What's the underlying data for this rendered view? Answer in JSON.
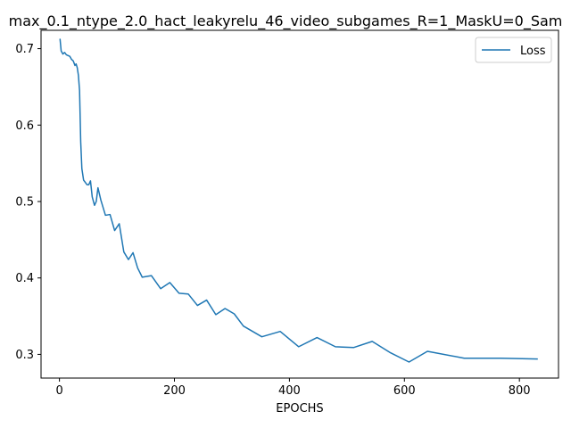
{
  "chart_data": {
    "type": "line",
    "title": "max_0.1_ntype_2.0_hact_leakyrelu_46_video_subgames_R=1_MaskU=0_Sam",
    "xlabel": "EPOCHS",
    "ylabel": "",
    "xlim": [
      -32,
      868
    ],
    "ylim": [
      0.269,
      0.724
    ],
    "xticks": [
      0,
      200,
      400,
      600,
      800
    ],
    "yticks": [
      0.3,
      0.4,
      0.5,
      0.6,
      0.7
    ],
    "grid": false,
    "legend_position": "top-right",
    "line_color": "#1f77b4",
    "series": [
      {
        "name": "Loss",
        "x": [
          1,
          3,
          6,
          9,
          12,
          15,
          18,
          21,
          24,
          27,
          29,
          31,
          33,
          35,
          37,
          39,
          42,
          45,
          48,
          51,
          54,
          57,
          61,
          64,
          67,
          72,
          80,
          88,
          96,
          104,
          112,
          120,
          128,
          136,
          144,
          160,
          176,
          192,
          208,
          224,
          240,
          256,
          272,
          288,
          304,
          320,
          352,
          384,
          416,
          448,
          480,
          512,
          544,
          576,
          608,
          640,
          704,
          768,
          832
        ],
        "y": [
          0.713,
          0.697,
          0.693,
          0.695,
          0.692,
          0.691,
          0.69,
          0.686,
          0.684,
          0.678,
          0.68,
          0.675,
          0.665,
          0.645,
          0.578,
          0.543,
          0.528,
          0.525,
          0.522,
          0.522,
          0.527,
          0.506,
          0.495,
          0.5,
          0.518,
          0.502,
          0.482,
          0.483,
          0.462,
          0.471,
          0.434,
          0.424,
          0.433,
          0.413,
          0.401,
          0.403,
          0.386,
          0.394,
          0.38,
          0.379,
          0.364,
          0.371,
          0.352,
          0.36,
          0.353,
          0.337,
          0.323,
          0.33,
          0.31,
          0.322,
          0.31,
          0.309,
          0.317,
          0.302,
          0.29,
          0.304,
          0.295,
          0.295,
          0.294
        ]
      }
    ]
  }
}
